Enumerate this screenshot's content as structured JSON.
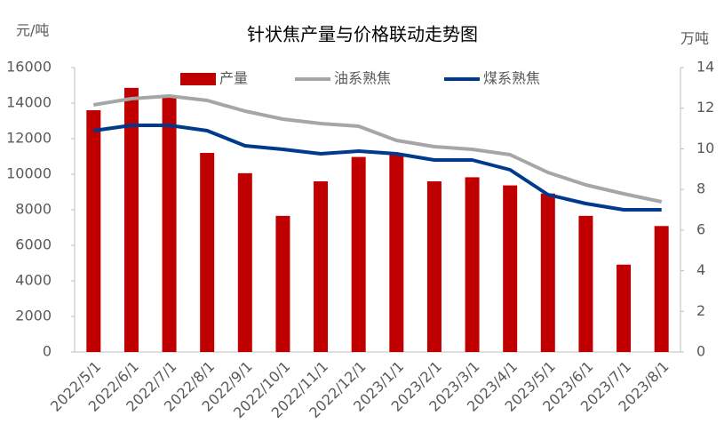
{
  "chart_data": {
    "type": "bar-line",
    "title": "针状焦产量与价格联动走势图",
    "y_label": "元/吨",
    "y2_label": "万吨",
    "categories": [
      "2022/5/1",
      "2022/6/1",
      "2022/7/1",
      "2022/8/1",
      "2022/9/1",
      "2022/10/1",
      "2022/11/1",
      "2022/12/1",
      "2023/1/1",
      "2023/2/1",
      "2023/3/1",
      "2023/4/1",
      "2023/5/1",
      "2023/6/1",
      "2023/7/1",
      "2023/8/1"
    ],
    "series": [
      {
        "name": "产量",
        "type": "bar",
        "axis": "y2",
        "color": "#c00000",
        "values": [
          11.9,
          13.0,
          12.6,
          9.8,
          8.8,
          6.7,
          8.4,
          9.6,
          9.7,
          8.4,
          8.6,
          8.2,
          7.8,
          6.7,
          4.3,
          6.2
        ]
      },
      {
        "name": "油系熟焦",
        "type": "line",
        "color": "#a6a6a6",
        "values": [
          13900,
          14250,
          14400,
          14150,
          13550,
          13100,
          12850,
          12700,
          11900,
          11550,
          11400,
          11100,
          10100,
          9400,
          8900,
          8450
        ]
      },
      {
        "name": "煤系熟焦",
        "type": "line",
        "color": "#003a8c",
        "values": [
          12450,
          12750,
          12750,
          12450,
          11600,
          11400,
          11150,
          11300,
          11150,
          10800,
          10800,
          10250,
          8850,
          8350,
          8000,
          8000
        ]
      }
    ],
    "ylim": [
      0,
      16000
    ],
    "yticks": [
      0,
      2000,
      4000,
      6000,
      8000,
      10000,
      12000,
      14000,
      16000
    ],
    "y2lim": [
      0,
      14
    ],
    "y2ticks": [
      0,
      2,
      4,
      6,
      8,
      10,
      12,
      14
    ],
    "grid": false,
    "legend": "top"
  }
}
